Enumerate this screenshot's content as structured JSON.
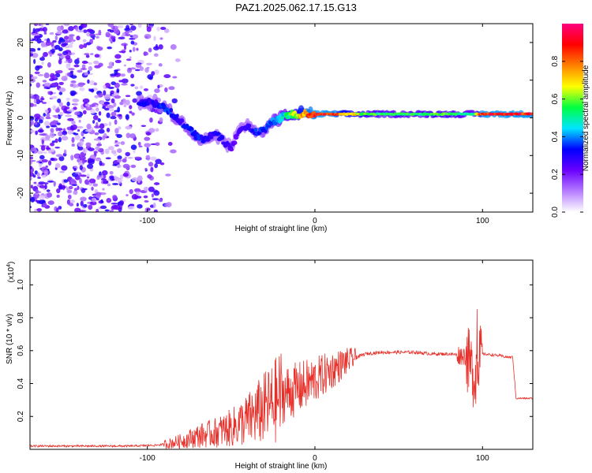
{
  "title": "PAZ1.2025.062.17.15.G13",
  "chart_data": [
    {
      "type": "heatmap",
      "xlabel": "Height of straight line (km)",
      "ylabel": "Frequency (Hz)",
      "xlim": [
        -170,
        130
      ],
      "ylim": [
        -25,
        25
      ],
      "xticks": [
        -100,
        0,
        100
      ],
      "yticks": [
        -20,
        -10,
        0,
        10,
        20
      ],
      "grid": false,
      "colorbar": {
        "label": "Normalized spectral amplitude",
        "range": [
          0,
          1
        ],
        "ticks": [
          0.0,
          0.2,
          0.4,
          0.6,
          0.8
        ],
        "tick_labels": [
          "0.0",
          "0.2",
          "0.4",
          "0.6",
          "0.8"
        ],
        "colors": [
          "#ffffff",
          "#b57cff",
          "#6a00ff",
          "#0000ff",
          "#00e5ff",
          "#00ff40",
          "#ffff00",
          "#ff8000",
          "#ff0000",
          "#ff0080"
        ]
      },
      "ridge": {
        "x": [
          -105,
          -95,
          -90,
          -85,
          -80,
          -75,
          -70,
          -65,
          -60,
          -55,
          -50,
          -45,
          -40,
          -35,
          -30,
          -25,
          -20,
          -15,
          -10,
          -5,
          0,
          10,
          20,
          40,
          60,
          80,
          90,
          95,
          100,
          130
        ],
        "y": [
          4,
          4,
          3,
          1,
          -1,
          -3,
          -5,
          -6,
          -4,
          -6,
          -8,
          -3,
          -2,
          -4,
          -3,
          -1,
          0,
          1,
          1,
          1,
          1,
          1,
          1,
          1,
          1,
          1,
          1,
          1,
          1,
          1
        ],
        "amplitude": [
          0.3,
          0.3,
          0.35,
          0.35,
          0.3,
          0.35,
          0.35,
          0.3,
          0.3,
          0.3,
          0.25,
          0.25,
          0.3,
          0.35,
          0.35,
          0.4,
          0.45,
          0.55,
          0.7,
          0.85,
          0.9,
          0.9,
          0.7,
          0.55,
          0.55,
          0.6,
          0.5,
          0.5,
          0.9,
          0.9
        ]
      }
    },
    {
      "type": "line",
      "xlabel": "Height of straight line (km)",
      "ylabel": "SNR (10 * v/v)",
      "y_multiplier": "(x10",
      "y_multiplier_exp": "4",
      "y_multiplier_close": ")",
      "xlim": [
        -170,
        130
      ],
      "ylim": [
        0,
        1.15
      ],
      "xticks": [
        -100,
        0,
        100
      ],
      "yticks": [
        0.2,
        0.4,
        0.6,
        0.8,
        1.0
      ],
      "ytick_labels": [
        "0.2",
        "0.4",
        "0.6",
        "0.8",
        "1.0"
      ],
      "color": "#e8302a",
      "grid": false,
      "x": [
        -170,
        -140,
        -110,
        -95,
        -90,
        -80,
        -70,
        -60,
        -50,
        -40,
        -30,
        -25,
        -20,
        -10,
        0,
        10,
        20,
        30,
        40,
        50,
        60,
        70,
        80,
        90,
        95,
        100,
        110,
        115,
        118,
        120,
        130
      ],
      "y": [
        0.02,
        0.02,
        0.02,
        0.025,
        0.03,
        0.05,
        0.08,
        0.1,
        0.13,
        0.18,
        0.25,
        0.28,
        0.33,
        0.37,
        0.42,
        0.48,
        0.54,
        0.58,
        0.59,
        0.59,
        0.59,
        0.58,
        0.58,
        0.57,
        0.45,
        0.58,
        0.57,
        0.56,
        0.56,
        0.31,
        0.31
      ]
    }
  ]
}
